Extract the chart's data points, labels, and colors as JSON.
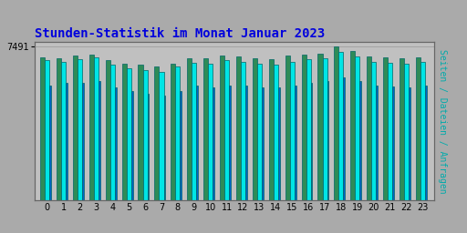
{
  "title": "Stunden-Statistik im Monat Januar 2023",
  "title_color": "#0000dd",
  "background_color": "#aaaaaa",
  "plot_bg_color": "#c0c0c0",
  "bar_colors": [
    "#2e8b57",
    "#00e5e5",
    "#0066cc"
  ],
  "bar_edge_color": "#006666",
  "hours": [
    0,
    1,
    2,
    3,
    4,
    5,
    6,
    7,
    8,
    9,
    10,
    11,
    12,
    13,
    14,
    15,
    16,
    17,
    18,
    19,
    20,
    21,
    22,
    23
  ],
  "ylabel_right": "Seiten / Dateien / Anfragen",
  "ylabel_right_color": "#00aaaa",
  "ytick_label": "7491",
  "ymax": 7700,
  "ymin": 0,
  "series1": [
    6950,
    6900,
    7050,
    7100,
    6800,
    6650,
    6600,
    6500,
    6650,
    6900,
    6900,
    7050,
    7000,
    6900,
    6850,
    7050,
    7100,
    7150,
    7491,
    7250,
    7000,
    6950,
    6900,
    6950
  ],
  "series2": [
    6800,
    6750,
    6850,
    6950,
    6600,
    6400,
    6350,
    6250,
    6500,
    6700,
    6650,
    6800,
    6750,
    6650,
    6600,
    6750,
    6850,
    6900,
    7200,
    7000,
    6750,
    6700,
    6650,
    6750
  ],
  "series3": [
    5600,
    5700,
    5700,
    5800,
    5500,
    5300,
    5200,
    5100,
    5300,
    5600,
    5500,
    5600,
    5600,
    5500,
    5500,
    5600,
    5700,
    5800,
    6000,
    5800,
    5600,
    5550,
    5500,
    5600
  ]
}
